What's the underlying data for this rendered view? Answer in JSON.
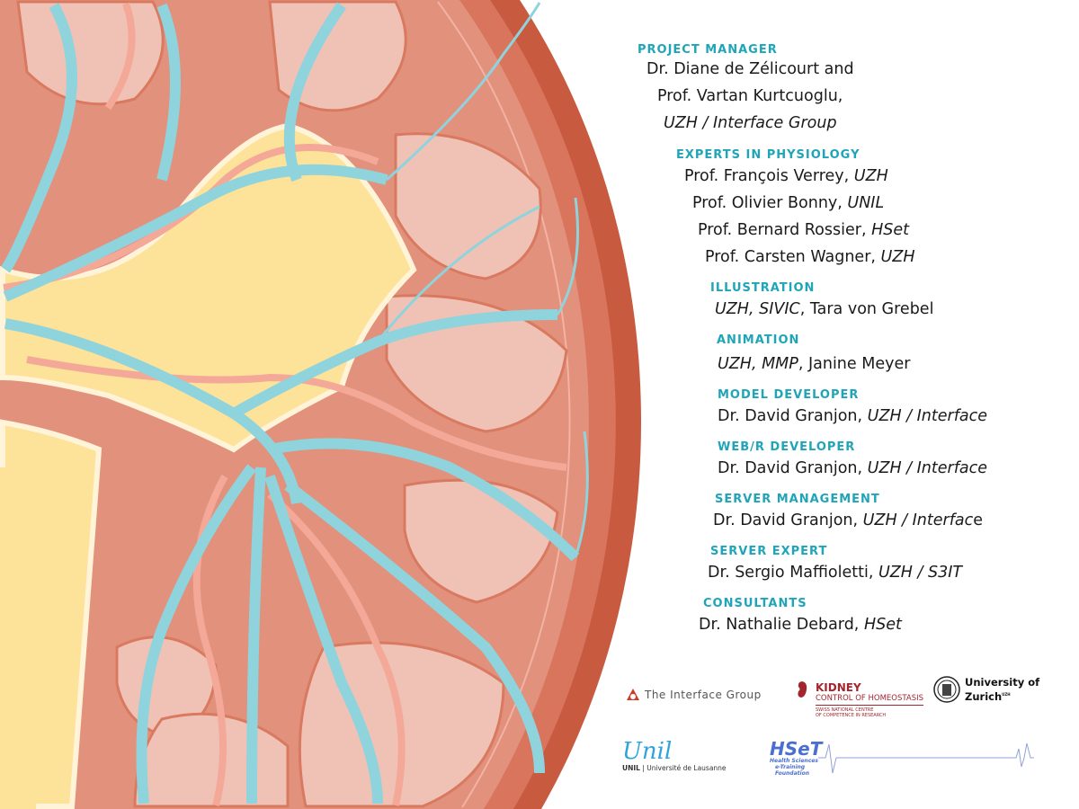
{
  "credits": [
    {
      "heading": "PROJECT MANAGER",
      "lines": [
        [
          {
            "t": "Dr. Diane de Zélicourt and"
          }
        ],
        [
          {
            "t": "Prof. Vartan Kurtcuoglu,"
          }
        ],
        [
          {
            "t": "UZH / Interface Group",
            "i": true
          }
        ]
      ]
    },
    {
      "heading": "EXPERTS IN PHYSIOLOGY",
      "lines": [
        [
          {
            "t": "Prof. François Verrey, "
          },
          {
            "t": "UZH",
            "i": true
          }
        ],
        [
          {
            "t": "Prof. Olivier Bonny, "
          },
          {
            "t": "UNIL",
            "i": true
          }
        ],
        [
          {
            "t": "Prof. Bernard Rossier, "
          },
          {
            "t": "HSet",
            "i": true
          }
        ],
        [
          {
            "t": "Prof. Carsten Wagner, "
          },
          {
            "t": "UZH",
            "i": true
          }
        ]
      ]
    },
    {
      "heading": "ILLUSTRATION",
      "lines": [
        [
          {
            "t": "UZH, SIVIC",
            "i": true
          },
          {
            "t": ", Tara von Grebel"
          }
        ]
      ]
    },
    {
      "heading": "ANIMATION",
      "lines": [
        [
          {
            "t": "UZH, MMP",
            "i": true
          },
          {
            "t": ", Janine Meyer"
          }
        ]
      ]
    },
    {
      "heading": "MODEL DEVELOPER",
      "lines": [
        [
          {
            "t": "Dr. David Granjon, "
          },
          {
            "t": "UZH / Interface",
            "i": true
          }
        ]
      ]
    },
    {
      "heading": "WEB/R DEVELOPER",
      "lines": [
        [
          {
            "t": "Dr. David Granjon, "
          },
          {
            "t": "UZH / Interface",
            "i": true
          }
        ]
      ]
    },
    {
      "heading": "SERVER MANAGEMENT",
      "lines": [
        [
          {
            "t": "Dr. David Granjon, "
          },
          {
            "t": "UZH / Interfac",
            "i": true
          },
          {
            "t": "e"
          }
        ]
      ]
    },
    {
      "heading": "SERVER EXPERT",
      "lines": [
        [
          {
            "t": "Dr. Sergio Maffioletti, "
          },
          {
            "t": "UZH / S3IT",
            "i": true
          }
        ]
      ]
    },
    {
      "heading": "CONSULTANTS",
      "lines": [
        [
          {
            "t": "Dr. Nathalie Debard, "
          },
          {
            "t": "HSet",
            "i": true
          }
        ]
      ]
    }
  ],
  "logos": {
    "interface": "The Interface Group",
    "kidney_title": "KIDNEY",
    "kidney_sub": "CONTROL OF HOMEOSTASIS",
    "kidney_small1": "SWISS NATIONAL CENTRE",
    "kidney_small2": "OF COMPETENCE IN RESEARCH",
    "uzh1": "University of",
    "uzh2": "Zurich",
    "uzh_sup": "UZH",
    "unil_script": "Unil",
    "unil_bold": "UNIL",
    "unil_text": " | Université de Lausanne",
    "hset": "HSeT",
    "hset_sub1": "Health Sciences",
    "hset_sub2": "e-Training",
    "hset_sub3": "Foundation"
  },
  "colors": {
    "heading": "#1fa5b8",
    "cortex": "#c85a40",
    "vessel_blue": "#8fd3dc",
    "pelvis": "#fde29a",
    "pyramid": "#f0c2b6"
  }
}
